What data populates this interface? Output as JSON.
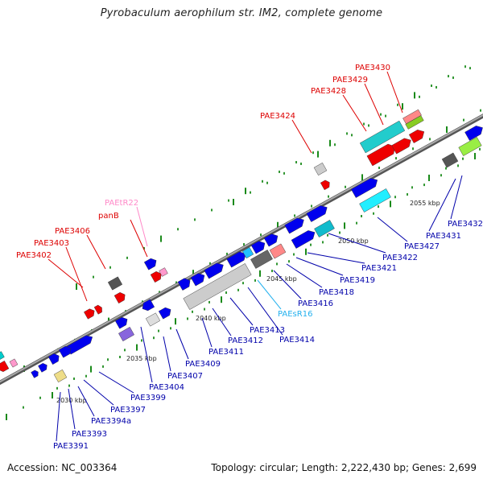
{
  "header": {
    "title": "Pyrobaculum aerophilum str. IM2, complete genome"
  },
  "footer": {
    "accession": "Accession: NC_003364",
    "summary": "Topology: circular; Length: 2,222,430 bp; Genes: 2,699"
  },
  "scale": [
    "2030 kbp",
    "2035 kbp",
    "2040 kbp",
    "2045 kbp",
    "2050 kbp",
    "2055 kbp"
  ],
  "colors": {
    "cds": "#0000ee",
    "trna": "#ff88cc",
    "rrna": "#22c0ff",
    "red_gene": "#ee0000",
    "backbone": "#888888",
    "tick": "#1a8a1a"
  },
  "genes_above": [
    {
      "name": "PAE3391",
      "color": "#0000aa"
    },
    {
      "name": "PAE3393",
      "color": "#0000aa"
    },
    {
      "name": "PAE3394a",
      "color": "#0000aa"
    },
    {
      "name": "PAE3397",
      "color": "#0000aa"
    },
    {
      "name": "PAE3399",
      "color": "#0000aa"
    },
    {
      "name": "PAE3404",
      "color": "#0000aa"
    },
    {
      "name": "PAE3407",
      "color": "#0000aa"
    },
    {
      "name": "PAE3409",
      "color": "#0000aa"
    },
    {
      "name": "PAE3411",
      "color": "#0000aa"
    },
    {
      "name": "PAE3412",
      "color": "#0000aa"
    },
    {
      "name": "PAE3413",
      "color": "#0000aa"
    },
    {
      "name": "PAE3414",
      "color": "#0000aa"
    },
    {
      "name": "PAEsR16",
      "color": "#22b0ee"
    },
    {
      "name": "PAE3416",
      "color": "#0000aa"
    },
    {
      "name": "PAE3418",
      "color": "#0000aa"
    },
    {
      "name": "PAE3419",
      "color": "#0000aa"
    },
    {
      "name": "PAE3421",
      "color": "#0000aa"
    },
    {
      "name": "PAE3422",
      "color": "#0000aa"
    },
    {
      "name": "PAE3427",
      "color": "#0000aa"
    },
    {
      "name": "PAE3431",
      "color": "#0000aa"
    },
    {
      "name": "PAE3432",
      "color": "#0000aa"
    }
  ],
  "genes_red": [
    {
      "name": "PAE3402",
      "color": "#dd0000"
    },
    {
      "name": "PAE3403",
      "color": "#dd0000"
    },
    {
      "name": "PAE3406",
      "color": "#dd0000"
    },
    {
      "name": "panB",
      "color": "#dd0000"
    },
    {
      "name": "PAEtR22",
      "color": "#ff88c8"
    },
    {
      "name": "PAE3424",
      "color": "#dd0000"
    },
    {
      "name": "PAE3428",
      "color": "#dd0000"
    },
    {
      "name": "PAE3429",
      "color": "#dd0000"
    },
    {
      "name": "PAE3430",
      "color": "#dd0000"
    }
  ]
}
